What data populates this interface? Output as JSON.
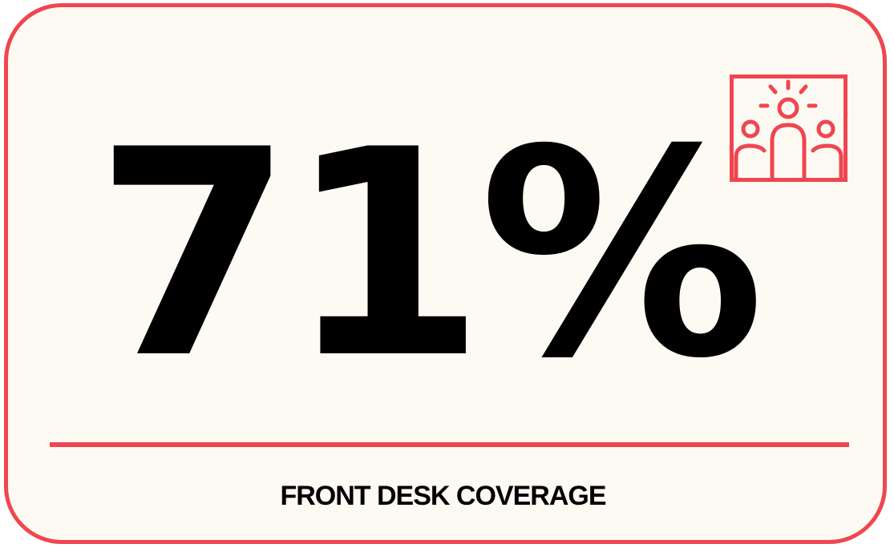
{
  "stat": {
    "value": "71%",
    "label": "FRONT DESK COVERAGE"
  },
  "icon": {
    "name": "team-spotlight-icon",
    "color": "#ef464f"
  },
  "colors": {
    "accent": "#ef464f",
    "background": "#fdfaf3",
    "text": "#000000"
  }
}
